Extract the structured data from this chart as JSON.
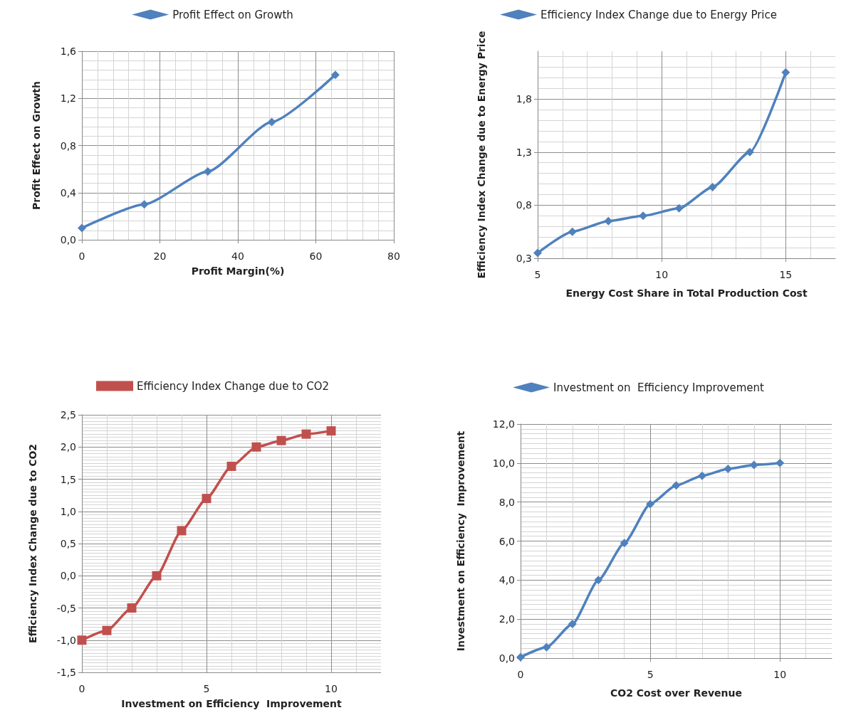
{
  "chart_data": [
    {
      "type": "line",
      "xlabel": "Profit Margin(%)",
      "ylabel": "Profit Effect on Growth",
      "x": [
        0,
        16,
        32.3,
        48.7,
        65
      ],
      "series": [
        {
          "name": "Profit Effect on Growth",
          "color": "#4f81bd",
          "values": [
            0.1,
            0.3,
            0.58,
            1.0,
            1.4
          ]
        }
      ],
      "xlim": [
        0,
        80
      ],
      "xticks": [
        0,
        20,
        40,
        60,
        80
      ],
      "ylim": [
        0,
        1.6
      ],
      "yticks": [
        {
          "value": 0,
          "label": "0,0"
        },
        {
          "value": 0.4,
          "label": "0,4"
        },
        {
          "value": 0.8,
          "label": "0,8"
        },
        {
          "value": 1.2,
          "label": "1,2"
        },
        {
          "value": 1.6,
          "label": "1,6"
        }
      ],
      "grid": true,
      "legend": "top",
      "marker": "diamond"
    },
    {
      "type": "line",
      "xlabel": "Energy Cost Share in Total Production Cost",
      "ylabel": "Efficiency Index Change due to Energy Price",
      "x": [
        5,
        6.4,
        7.85,
        9.25,
        10.7,
        12.05,
        13.55,
        15
      ],
      "series": [
        {
          "name": "Efficiency Index Change due to Energy Price",
          "color": "#4f81bd",
          "values": [
            0.35,
            0.55,
            0.65,
            0.7,
            0.77,
            0.97,
            1.3,
            2.05
          ]
        }
      ],
      "xlim": [
        5,
        17
      ],
      "xticks": [
        5,
        10,
        15
      ],
      "ylim": [
        0.3,
        2.25
      ],
      "yticks": [
        {
          "value": 0.3,
          "label": "0,3"
        },
        {
          "value": 0.8,
          "label": "0,8"
        },
        {
          "value": 1.3,
          "label": "1,3"
        },
        {
          "value": 1.8,
          "label": "1,8"
        }
      ],
      "grid": true,
      "legend": "top",
      "marker": "diamond"
    },
    {
      "type": "line",
      "xlabel": "Investment on Efficiency  Improvement",
      "ylabel": "Efficiency Index Change due to CO2",
      "x": [
        0,
        1,
        2,
        3,
        4,
        5,
        6,
        7,
        8,
        9,
        10
      ],
      "series": [
        {
          "name": "Efficiency Index Change due to CO2",
          "color": "#c0504d",
          "values": [
            -1.0,
            -0.85,
            -0.5,
            0.0,
            0.7,
            1.2,
            1.7,
            2.0,
            2.1,
            2.2,
            2.25
          ]
        }
      ],
      "xlim": [
        0,
        12
      ],
      "xticks": [
        0,
        5,
        10
      ],
      "ylim": [
        -1.5,
        2.5
      ],
      "yticks": [
        {
          "value": -1.5,
          "label": "-1,5"
        },
        {
          "value": -1,
          "label": "-1,0"
        },
        {
          "value": -0.5,
          "label": "-0,5"
        },
        {
          "value": 0,
          "label": "0,0"
        },
        {
          "value": 0.5,
          "label": "0,5"
        },
        {
          "value": 1,
          "label": "1,0"
        },
        {
          "value": 1.5,
          "label": "1,5"
        },
        {
          "value": 2,
          "label": "2,0"
        },
        {
          "value": 2.5,
          "label": "2,5"
        }
      ],
      "grid": true,
      "legend": "top",
      "marker": "square"
    },
    {
      "type": "line",
      "xlabel": "CO2 Cost over Revenue",
      "ylabel": "Investment on Efficiency  Improvement",
      "x": [
        0,
        1,
        2,
        3,
        4,
        5,
        6,
        7,
        8,
        9,
        10
      ],
      "series": [
        {
          "name": "Investment on  Efficiency Improvement",
          "color": "#4f81bd",
          "values": [
            0.05,
            0.56,
            1.75,
            4.0,
            5.9,
            7.9,
            8.85,
            9.35,
            9.7,
            9.9,
            10.0
          ]
        }
      ],
      "xlim": [
        0,
        12
      ],
      "xticks": [
        0,
        5,
        10
      ],
      "ylim": [
        0,
        12
      ],
      "yticks": [
        {
          "value": 0,
          "label": "0,0"
        },
        {
          "value": 2,
          "label": "2,0"
        },
        {
          "value": 4,
          "label": "4,0"
        },
        {
          "value": 6,
          "label": "6,0"
        },
        {
          "value": 8,
          "label": "8,0"
        },
        {
          "value": 10,
          "label": "10,0"
        },
        {
          "value": 12,
          "label": "12,0"
        }
      ],
      "grid": true,
      "legend": "top",
      "marker": "diamond"
    }
  ]
}
